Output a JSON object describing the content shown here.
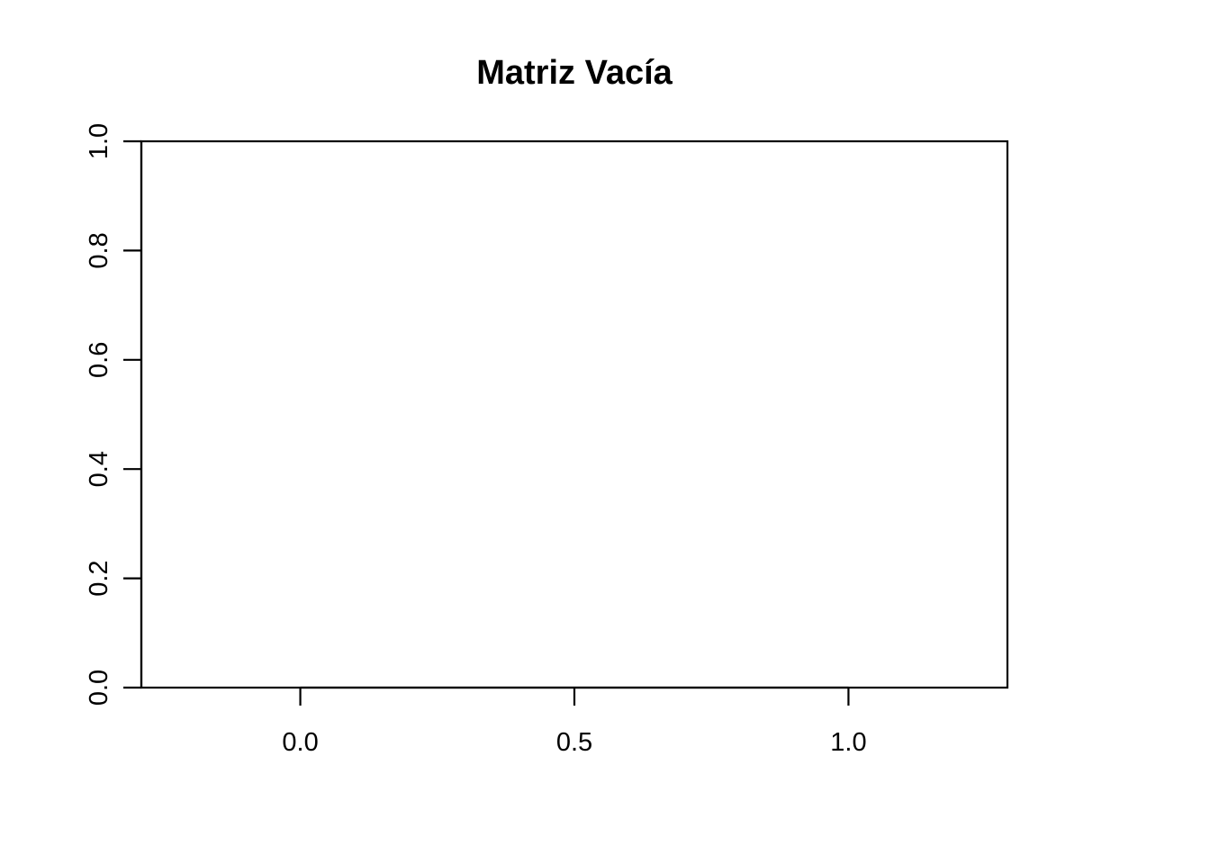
{
  "chart_data": {
    "type": "scatter",
    "title": "Matriz Vacía",
    "xlabel": "",
    "ylabel": "",
    "xlim": [
      -0.29,
      1.29
    ],
    "ylim": [
      0,
      1
    ],
    "x_ticks": [
      0.0,
      0.5,
      1.0
    ],
    "x_tick_labels": [
      "0.0",
      "0.5",
      "1.0"
    ],
    "y_ticks": [
      0.0,
      0.2,
      0.4,
      0.6,
      0.8,
      1.0
    ],
    "y_tick_labels": [
      "0.0",
      "0.2",
      "0.4",
      "0.6",
      "0.8",
      "1.0"
    ],
    "series": [],
    "grid": false,
    "legend": "none"
  }
}
